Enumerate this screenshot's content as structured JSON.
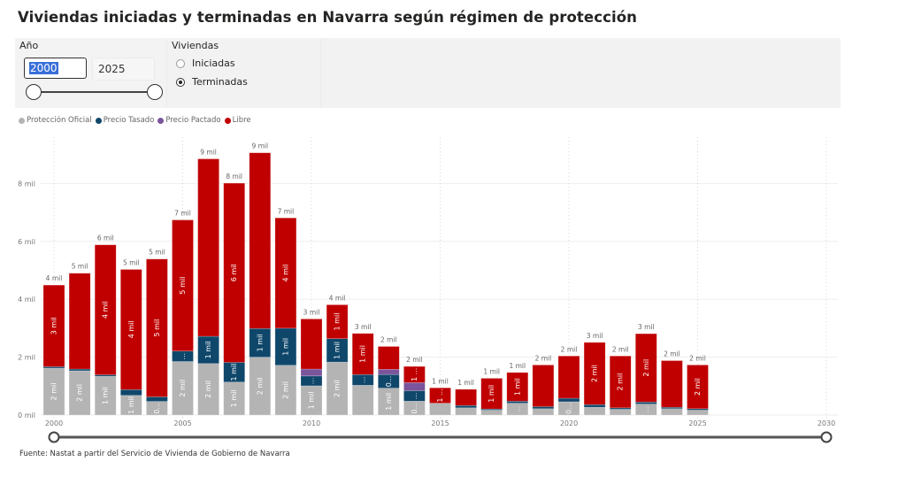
{
  "title": "Viviendas iniciadas y terminadas en Navarra según régimen de protección",
  "slicers": {
    "year": {
      "label": "Año",
      "start": "2000",
      "end": "2025",
      "range_fraction": [
        0,
        1
      ]
    },
    "housing": {
      "label": "Viviendas",
      "options": [
        {
          "label": "Iniciadas",
          "selected": false
        },
        {
          "label": "Terminadas",
          "selected": true
        }
      ]
    }
  },
  "legend": [
    {
      "name": "Protección Oficial",
      "color": "#b4b4b4"
    },
    {
      "name": "Precio Tasado",
      "color": "#0f476b"
    },
    {
      "name": "Precio Pactado",
      "color": "#7b559c"
    },
    {
      "name": "Libre",
      "color": "#c00000"
    }
  ],
  "chart_data": {
    "type": "bar",
    "stacked": true,
    "title": "",
    "xlabel": "",
    "ylabel": "",
    "categories": [
      2000,
      2001,
      2002,
      2003,
      2004,
      2005,
      2006,
      2007,
      2008,
      2009,
      2010,
      2011,
      2012,
      2013,
      2014,
      2015,
      2016,
      2017,
      2018,
      2019,
      2020,
      2021,
      2022,
      2023,
      2024,
      2025
    ],
    "series": [
      {
        "name": "Protección Oficial",
        "color": "#b4b4b4",
        "values": [
          1620,
          1530,
          1340,
          680,
          470,
          1850,
          1780,
          1140,
          2000,
          1720,
          1010,
          1830,
          1030,
          930,
          480,
          410,
          250,
          170,
          410,
          220,
          460,
          270,
          200,
          380,
          220,
          170
        ],
        "labels": [
          "2 mil",
          "2 mil",
          "1 mil",
          "1 mil",
          "0...",
          "2 mil",
          "2 mil",
          "1 mil",
          "2 mil",
          "2 mil",
          "1 mil",
          "2 mil",
          "",
          "1 mil",
          "0...",
          "",
          "",
          "",
          "...",
          "",
          "0...",
          "",
          "",
          "...",
          "",
          ""
        ]
      },
      {
        "name": "Precio Tasado",
        "color": "#0f476b",
        "values": [
          50,
          60,
          50,
          200,
          160,
          360,
          940,
          680,
          990,
          1280,
          340,
          810,
          370,
          470,
          360,
          0,
          80,
          40,
          70,
          70,
          120,
          90,
          50,
          70,
          50,
          50
        ],
        "labels": [
          "",
          "",
          "",
          "",
          "",
          "...",
          "1 mil",
          "1 mil",
          "1 mil",
          "1 mil",
          "...",
          "1 mil",
          "...",
          "0...",
          "...",
          "",
          "",
          "",
          "",
          "",
          "",
          "",
          "",
          "",
          "",
          ""
        ]
      },
      {
        "name": "Precio Pactado",
        "color": "#7b559c",
        "values": [
          0,
          0,
          0,
          0,
          0,
          0,
          0,
          0,
          0,
          0,
          240,
          0,
          0,
          180,
          280,
          0,
          0,
          0,
          0,
          0,
          0,
          0,
          0,
          0,
          0,
          0
        ],
        "labels": [
          "",
          "",
          "",
          "",
          "",
          "",
          "",
          "",
          "",
          "",
          "",
          "",
          "",
          "",
          "",
          "",
          "",
          "",
          "",
          "",
          "",
          "",
          "",
          "",
          "",
          ""
        ]
      },
      {
        "name": "Libre",
        "color": "#c00000",
        "values": [
          2820,
          3310,
          4490,
          4150,
          4760,
          4530,
          6130,
          6190,
          6070,
          3810,
          1730,
          1170,
          1420,
          790,
          560,
          530,
          560,
          1060,
          990,
          1440,
          1460,
          2150,
          1790,
          2360,
          1610,
          1510
        ],
        "labels": [
          "3 mil",
          "",
          "4 mil",
          "4 mil",
          "5 mil",
          "5 mil",
          "",
          "6 mil",
          "",
          "4 mil",
          "",
          "1 mil",
          "1 mil",
          "",
          "1 ...",
          "1 ...",
          "",
          "1 mil",
          "1 mil",
          "",
          "",
          "2 mil",
          "2 mil",
          "2 mil",
          "",
          "2 mil"
        ]
      }
    ],
    "total_labels": [
      "4 mil",
      "5 mil",
      "6 mil",
      "5 mil",
      "5 mil",
      "7 mil",
      "9 mil",
      "8 mil",
      "9 mil",
      "7 mil",
      "3 mil",
      "4 mil",
      "3 mil",
      "2 mil",
      "2 mil",
      "1 mil",
      "1 mil",
      "1 mil",
      "1 mil",
      "2 mil",
      "2 mil",
      "3 mil",
      "2 mil",
      "3 mil",
      "2 mil",
      "2 mil"
    ],
    "yticks": [
      {
        "value": 0,
        "label": "0 mil"
      },
      {
        "value": 2000,
        "label": "2 mil"
      },
      {
        "value": 4000,
        "label": "4 mil"
      },
      {
        "value": 6000,
        "label": "6 mil"
      },
      {
        "value": 8000,
        "label": "8 mil"
      }
    ],
    "xticks": [
      {
        "value": 2000,
        "label": "2000"
      },
      {
        "value": 2005,
        "label": "2005"
      },
      {
        "value": 2010,
        "label": "2010"
      },
      {
        "value": 2015,
        "label": "2015"
      },
      {
        "value": 2020,
        "label": "2020"
      },
      {
        "value": 2025,
        "label": "2025"
      },
      {
        "value": 2030,
        "label": "2030"
      }
    ],
    "ylim": [
      0,
      9600
    ],
    "xlim": [
      2000,
      2030
    ],
    "grid": true,
    "legend_position": "top-left"
  },
  "x_range_slider": {
    "start": 2000,
    "end": 2030
  },
  "footer": "Fuente: Nastat a partir del Servicio de Vivienda de Gobierno de Navarra"
}
